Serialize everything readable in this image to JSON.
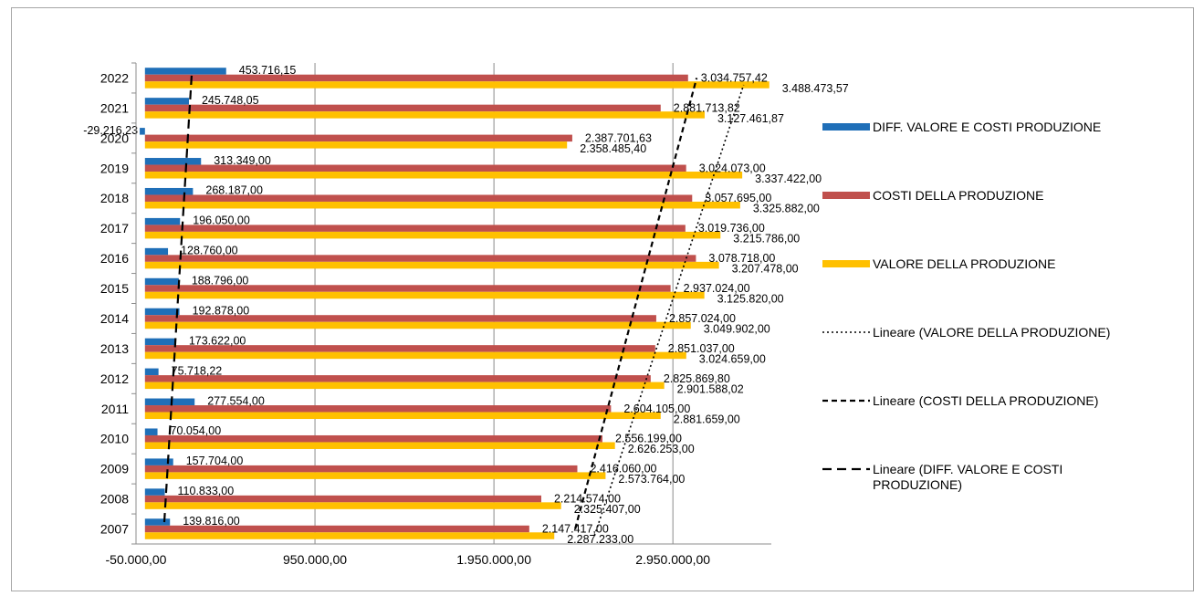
{
  "chart_data": {
    "type": "bar",
    "orientation": "horizontal",
    "categories": [
      "2007",
      "2008",
      "2009",
      "2010",
      "2011",
      "2012",
      "2013",
      "2014",
      "2015",
      "2016",
      "2017",
      "2018",
      "2019",
      "2020",
      "2021",
      "2022"
    ],
    "xlim": [
      -50000,
      3500000
    ],
    "x_ticks": [
      -50000,
      950000,
      1950000,
      2950000
    ],
    "x_tick_labels": [
      "-50.000,00",
      "950.000,00",
      "1.950.000,00",
      "2.950.000,00"
    ],
    "grid": true,
    "legend_position": "right",
    "series": [
      {
        "name": "DIFF. VALORE E COSTI PRODUZIONE",
        "color": "#1f6fb8",
        "values": [
          139816,
          110833,
          157704,
          70054,
          277554,
          75718.22,
          173622,
          192878,
          188796,
          128760,
          196050,
          268187,
          313349,
          -29216.23,
          245748.05,
          453716.15
        ],
        "labels": [
          "139.816,00",
          "110.833,00",
          "157.704,00",
          "70.054,00",
          "277.554,00",
          "75.718,22",
          "173.622,00",
          "192.878,00",
          "188.796,00",
          "128.760,00",
          "196.050,00",
          "268.187,00",
          "313.349,00",
          "-29.216,23",
          "245.748,05",
          "453.716,15"
        ]
      },
      {
        "name": "COSTI DELLA PRODUZIONE",
        "color": "#c0504d",
        "values": [
          2147417,
          2214574,
          2416060,
          2556199,
          2604105,
          2825869.8,
          2851037,
          2857024,
          2937024,
          3078718,
          3019736,
          3057695,
          3024073,
          2387701.63,
          2881713.82,
          3034757.42
        ],
        "labels": [
          "2.147.417,00",
          "2.214.574,00",
          "2.416.060,00",
          "2.556.199,00",
          "2.604.105,00",
          "2.825.869,80",
          "2.851.037,00",
          "2.857.024,00",
          "2.937.024,00",
          "3.078.718,00",
          "3.019.736,00",
          "3.057.695,00",
          "3.024.073,00",
          "2.387.701,63",
          "2.881.713,82",
          "3.034.757,42"
        ]
      },
      {
        "name": "VALORE DELLA PRODUZIONE",
        "color": "#ffc000",
        "values": [
          2287233,
          2325407,
          2573764,
          2626253,
          2881659,
          2901588.02,
          3024659,
          3049902,
          3125820,
          3207478,
          3215786,
          3325882,
          3337422,
          2358485.4,
          3127461.87,
          3488473.57
        ],
        "labels": [
          "2.287.233,00",
          "2.325.407,00",
          "2.573.764,00",
          "2.626.253,00",
          "2.881.659,00",
          "2.901.588,02",
          "3.024.659,00",
          "3.049.902,00",
          "3.125.820,00",
          "3.207.478,00",
          "3.215.786,00",
          "3.325.882,00",
          "3.337.422,00",
          "2.358.485,40",
          "3.127.461,87",
          "3.488.473,57"
        ]
      }
    ],
    "trendlines": [
      {
        "name": "Lineare (VALORE DELLA PRODUZIONE)",
        "of_series": 2,
        "style": "dotted"
      },
      {
        "name": "Lineare (COSTI DELLA PRODUZIONE)",
        "of_series": 1,
        "style": "dashed"
      },
      {
        "name": "Lineare (DIFF. VALORE E COSTI PRODUZIONE)",
        "of_series": 0,
        "style": "long-dash"
      }
    ]
  }
}
